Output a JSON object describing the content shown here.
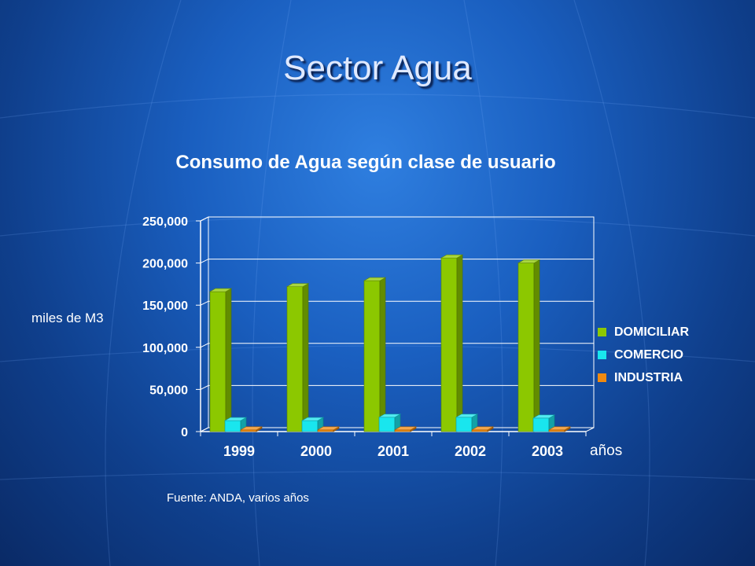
{
  "slide": {
    "title": "Sector Agua",
    "source": "Fuente: ANDA, varios años",
    "colors": {
      "background": "#1a5fc0",
      "title_text": "#dfe9ff"
    }
  },
  "chart_data": {
    "type": "bar",
    "title": "Consumo de Agua según clase de usuario",
    "xlabel": "años",
    "ylabel": "miles de M3",
    "categories": [
      "1999",
      "2000",
      "2001",
      "2002",
      "2003"
    ],
    "ylim": [
      0,
      250000
    ],
    "yticks": [
      0,
      50000,
      100000,
      150000,
      200000,
      250000
    ],
    "ytick_labels": [
      "0",
      "50,000",
      "100,000",
      "150,000",
      "200,000",
      "250,000"
    ],
    "grid": true,
    "legend_position": "right",
    "series": [
      {
        "name": "DOMICILIAR",
        "color": "#8cc800",
        "values": [
          166000,
          172000,
          179000,
          206000,
          200000
        ]
      },
      {
        "name": "COMERCIO",
        "color": "#19e6ee",
        "values": [
          13000,
          13000,
          17000,
          17000,
          16000
        ]
      },
      {
        "name": "INDUSTRIA",
        "color": "#f08a10",
        "values": [
          2000,
          2000,
          2000,
          2000,
          2000
        ]
      }
    ]
  }
}
